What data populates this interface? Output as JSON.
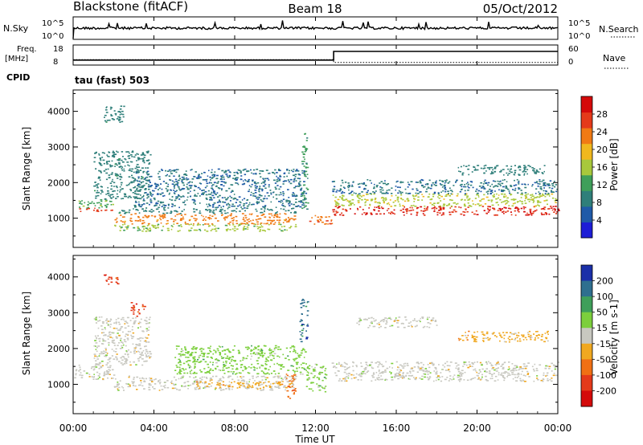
{
  "header": {
    "station": "Blackstone (fitACF)",
    "beam": "Beam 18",
    "date": "05/Oct/2012"
  },
  "side_labels": {
    "nsky": "N.Sky",
    "nsearch": "N.Search",
    "freq": "Freq.",
    "freq_unit": "[MHz]",
    "nave": "Nave",
    "cpid": "CPID",
    "cpid_value": "tau (fast) 503"
  },
  "time_axis": {
    "label": "Time UT",
    "ticks": [
      "00:00",
      "04:00",
      "08:00",
      "12:00",
      "16:00",
      "20:00",
      "00:00"
    ],
    "hours": [
      0,
      4,
      8,
      12,
      16,
      20,
      24
    ]
  },
  "noise_panel": {
    "left_ticks": [
      "10^5",
      "10^0"
    ],
    "right_ticks": [
      "10^5",
      "10^0"
    ]
  },
  "freq_panel": {
    "left_ticks": [
      "18",
      "8"
    ],
    "right_ticks": [
      "60",
      "0"
    ],
    "freq_series": [
      {
        "x": 0,
        "y": 10.5
      },
      {
        "x": 12.9,
        "y": 10.5
      },
      {
        "x": 12.9,
        "y": 14.8
      },
      {
        "x": 24,
        "y": 14.8
      }
    ],
    "nave_series": [
      {
        "x": 0,
        "y": 16
      },
      {
        "x": 12.9,
        "y": 16
      },
      {
        "x": 12.9,
        "y": 8
      },
      {
        "x": 24,
        "y": 8
      }
    ]
  },
  "power_panel": {
    "ylabel": "Slant Range [km]",
    "yticks": [
      1000,
      2000,
      3000,
      4000
    ],
    "ylim": [
      180,
      4600
    ],
    "colorbar_label": "Power [dB]",
    "colorbar_ticks": [
      "4",
      "8",
      "12",
      "16",
      "20",
      "24",
      "28"
    ],
    "colors": [
      "#1d1dd6",
      "#1f5aa8",
      "#2f7f7a",
      "#3f9f5a",
      "#a8c83c",
      "#f0b81e",
      "#f07a14",
      "#e43a1a",
      "#d40a0a"
    ]
  },
  "velocity_panel": {
    "ylabel": "Slant Range [km]",
    "yticks": [
      1000,
      2000,
      3000,
      4000
    ],
    "ylim": [
      180,
      4600
    ],
    "colorbar_label": "Velocity [m s-1]",
    "colorbar_ticks": [
      "200",
      "100",
      "50",
      "15",
      "-15",
      "-50",
      "-100",
      "-200"
    ],
    "colors": [
      "#1a2fa8",
      "#2f6f8f",
      "#3f9f5a",
      "#7ccf3c",
      "#c8c8c0",
      "#f0a820",
      "#f07014",
      "#e43a1a",
      "#d40a0a"
    ]
  },
  "chart_data": {
    "type": "heatmap",
    "x_unit": "hours UT",
    "y_unit": "slant range km",
    "power_features": [
      {
        "x": [
          0.2,
          2.0
        ],
        "y": [
          1300,
          1550
        ],
        "value": 12
      },
      {
        "x": [
          0.2,
          2.0
        ],
        "y": [
          1200,
          1300
        ],
        "value": 26
      },
      {
        "x": [
          1.0,
          3.8
        ],
        "y": [
          1550,
          2900
        ],
        "value": 8
      },
      {
        "x": [
          1.5,
          2.5
        ],
        "y": [
          3700,
          4200
        ],
        "value": 8
      },
      {
        "x": [
          2.0,
          11.0
        ],
        "y": [
          850,
          1150
        ],
        "value": 22
      },
      {
        "x": [
          2.0,
          11.0
        ],
        "y": [
          1150,
          1300
        ],
        "value": 8
      },
      {
        "x": [
          2.0,
          11.0
        ],
        "y": [
          650,
          850
        ],
        "value": 14
      },
      {
        "x": [
          3.0,
          11.5
        ],
        "y": [
          1300,
          2400
        ],
        "value": 6
      },
      {
        "x": [
          11.3,
          11.6
        ],
        "y": [
          1200,
          3400
        ],
        "value": 10
      },
      {
        "x": [
          11.5,
          12.8
        ],
        "y": [
          850,
          1100
        ],
        "value": 24
      },
      {
        "x": [
          12.8,
          24.0
        ],
        "y": [
          1100,
          1350
        ],
        "value": 28
      },
      {
        "x": [
          12.8,
          24.0
        ],
        "y": [
          1350,
          1700
        ],
        "value": 16
      },
      {
        "x": [
          12.8,
          24.0
        ],
        "y": [
          1700,
          2100
        ],
        "value": 6
      },
      {
        "x": [
          19.0,
          23.5
        ],
        "y": [
          2200,
          2500
        ],
        "value": 8
      }
    ],
    "velocity_features": [
      {
        "x": [
          0.0,
          2.0
        ],
        "y": [
          1150,
          1550
        ],
        "value": 0
      },
      {
        "x": [
          1.5,
          2.2
        ],
        "y": [
          3800,
          4100
        ],
        "value": -200
      },
      {
        "x": [
          2.8,
          3.5
        ],
        "y": [
          2900,
          3300
        ],
        "value": -200
      },
      {
        "x": [
          1.0,
          3.8
        ],
        "y": [
          1550,
          2900
        ],
        "value": 0
      },
      {
        "x": [
          2.0,
          11.0
        ],
        "y": [
          850,
          1250
        ],
        "value": 0
      },
      {
        "x": [
          6.0,
          11.0
        ],
        "y": [
          900,
          1100
        ],
        "value": -50
      },
      {
        "x": [
          5.0,
          11.5
        ],
        "y": [
          1300,
          2100
        ],
        "value": 30
      },
      {
        "x": [
          10.5,
          11.0
        ],
        "y": [
          600,
          1300
        ],
        "value": -80
      },
      {
        "x": [
          11.2,
          11.6
        ],
        "y": [
          2200,
          3400
        ],
        "value": 150
      },
      {
        "x": [
          11.5,
          12.5
        ],
        "y": [
          800,
          1600
        ],
        "value": 40
      },
      {
        "x": [
          12.8,
          24.0
        ],
        "y": [
          1100,
          1650
        ],
        "value": 0
      },
      {
        "x": [
          14.0,
          18.0
        ],
        "y": [
          2600,
          2900
        ],
        "value": 10
      },
      {
        "x": [
          19.0,
          23.5
        ],
        "y": [
          2200,
          2500
        ],
        "value": -30
      }
    ]
  }
}
